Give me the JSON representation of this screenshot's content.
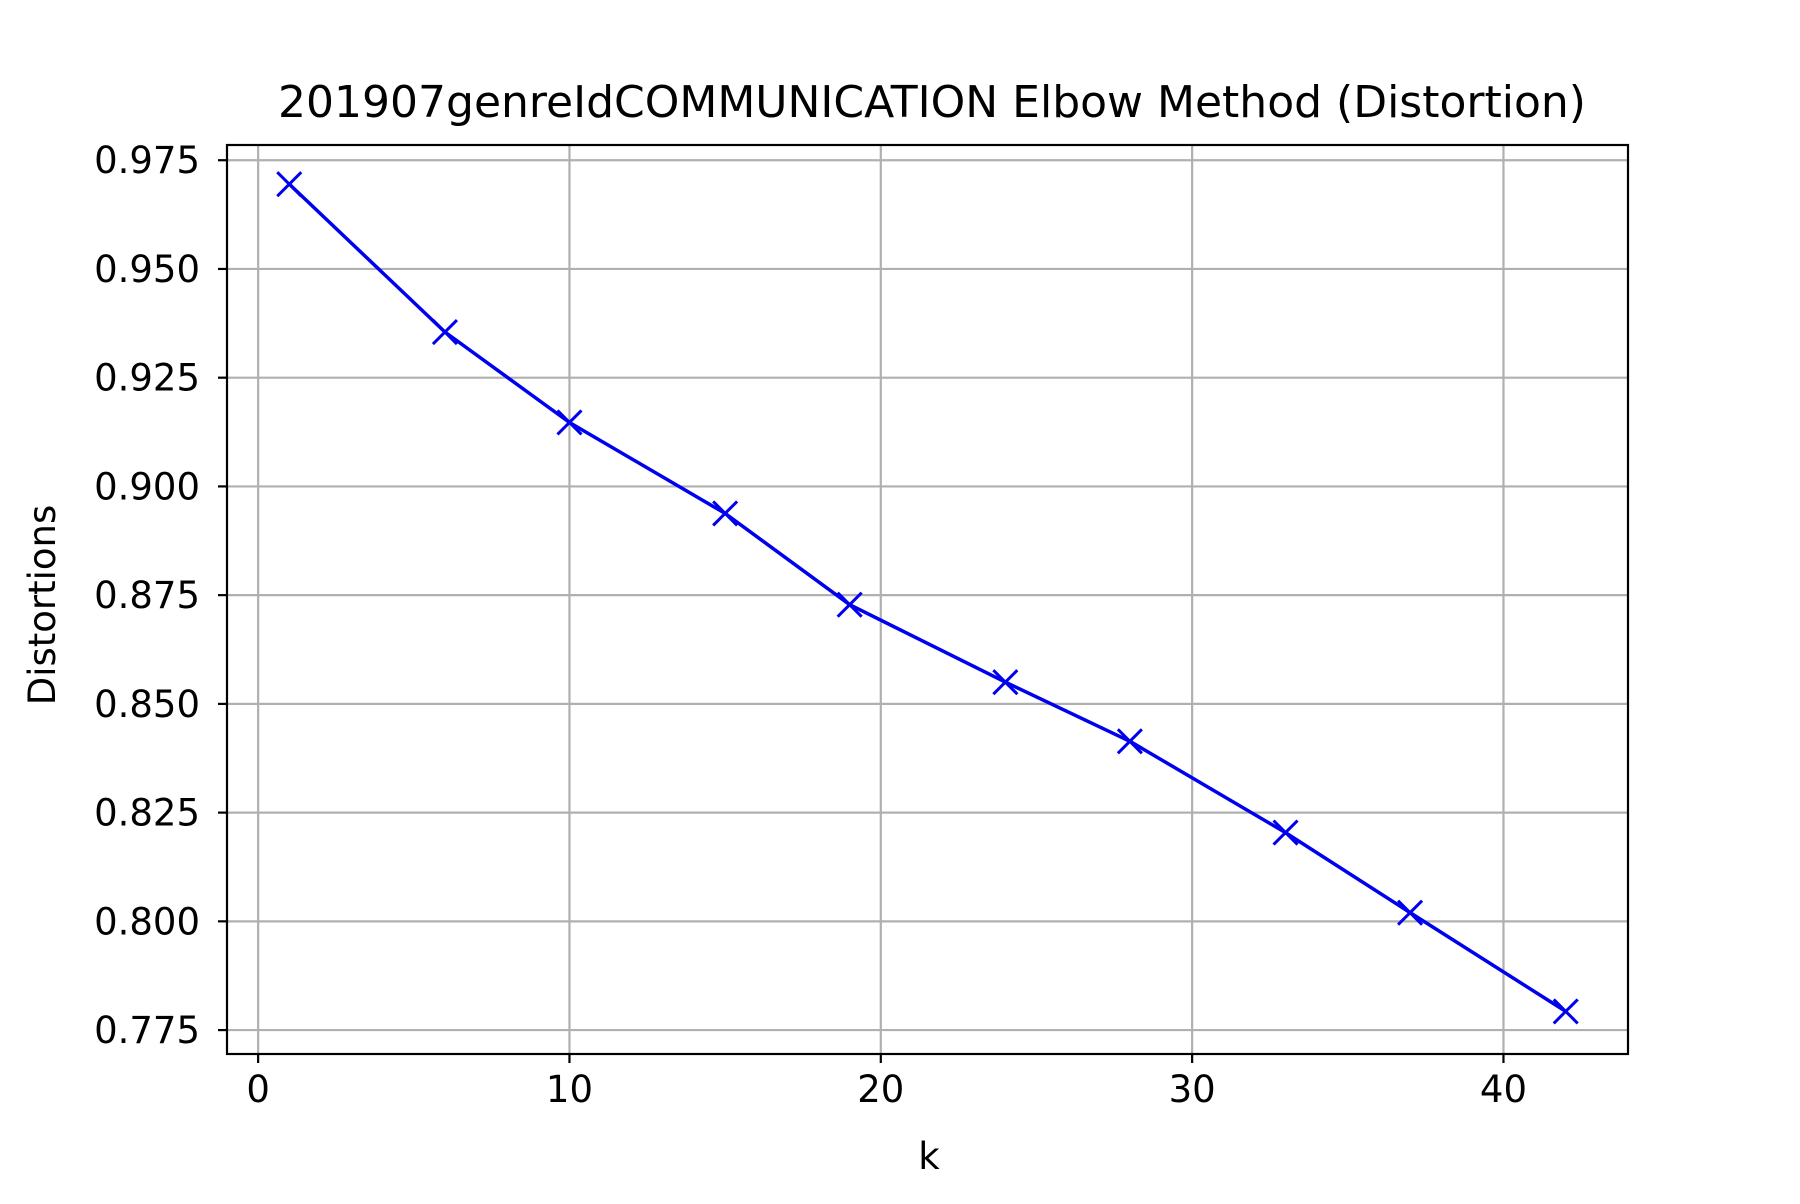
{
  "chart_data": {
    "type": "line",
    "title": "201907genreIdCOMMUNICATION Elbow Method (Distortion)",
    "xlabel": "k",
    "ylabel": "Distortions",
    "xlim": [
      -1,
      44
    ],
    "ylim": [
      0.7695,
      0.9785
    ],
    "xticks": [
      0,
      10,
      20,
      30,
      40
    ],
    "xtick_labels": [
      "0",
      "10",
      "20",
      "30",
      "40"
    ],
    "yticks": [
      0.775,
      0.8,
      0.825,
      0.85,
      0.875,
      0.9,
      0.925,
      0.95,
      0.975
    ],
    "ytick_labels": [
      "0.775",
      "0.800",
      "0.825",
      "0.850",
      "0.875",
      "0.900",
      "0.925",
      "0.950",
      "0.975"
    ],
    "grid": true,
    "marker": "x",
    "series": [
      {
        "color": "#0000ee",
        "x": [
          1,
          6,
          10,
          15,
          19,
          24,
          28,
          33,
          37,
          42
        ],
        "y": [
          0.9695,
          0.9355,
          0.9147,
          0.8938,
          0.8728,
          0.855,
          0.8414,
          0.8204,
          0.802,
          0.7793
        ]
      }
    ]
  }
}
